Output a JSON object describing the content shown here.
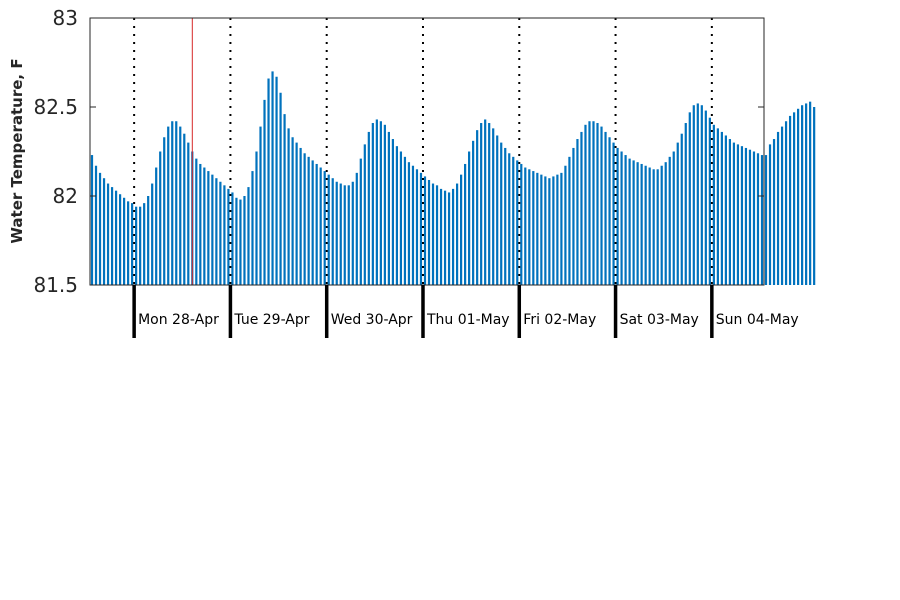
{
  "chart_data": {
    "type": "bar",
    "ylabel": "Water Temperature, F",
    "ylim": [
      81.5,
      83
    ],
    "yticks": [
      "81.5",
      "82",
      "82.5",
      "83"
    ],
    "bar_color": "#0072BD",
    "x_range_hours": [
      0,
      168
    ],
    "days": [
      {
        "label": "Mon 28-Apr",
        "start_hour": 11
      },
      {
        "label": "Tue 29-Apr",
        "start_hour": 35
      },
      {
        "label": "Wed 30-Apr",
        "start_hour": 59
      },
      {
        "label": "Thu 01-May",
        "start_hour": 83
      },
      {
        "label": "Fri 02-May",
        "start_hour": 107
      },
      {
        "label": "Sat 03-May",
        "start_hour": 131
      },
      {
        "label": "Sun 04-May",
        "start_hour": 155
      }
    ],
    "current_time_marker_hour": 25.5,
    "current_time_marker_color": "#d62728",
    "values": [
      82.23,
      82.17,
      82.13,
      82.1,
      82.07,
      82.05,
      82.03,
      82.01,
      81.99,
      81.97,
      81.96,
      81.94,
      81.94,
      81.96,
      82.0,
      82.07,
      82.16,
      82.25,
      82.33,
      82.39,
      82.42,
      82.42,
      82.39,
      82.35,
      82.3,
      82.25,
      82.21,
      82.18,
      82.16,
      82.14,
      82.12,
      82.1,
      82.08,
      82.06,
      82.04,
      82.02,
      81.99,
      81.98,
      82.0,
      82.05,
      82.14,
      82.25,
      82.39,
      82.54,
      82.66,
      82.7,
      82.67,
      82.58,
      82.46,
      82.38,
      82.33,
      82.3,
      82.27,
      82.24,
      82.22,
      82.2,
      82.18,
      82.16,
      82.14,
      82.12,
      82.1,
      82.08,
      82.07,
      82.06,
      82.06,
      82.08,
      82.13,
      82.21,
      82.29,
      82.36,
      82.41,
      82.43,
      82.42,
      82.4,
      82.36,
      82.32,
      82.28,
      82.25,
      82.22,
      82.19,
      82.17,
      82.15,
      82.13,
      82.11,
      82.09,
      82.07,
      82.06,
      82.04,
      82.03,
      82.02,
      82.04,
      82.07,
      82.12,
      82.18,
      82.25,
      82.31,
      82.37,
      82.41,
      82.43,
      82.41,
      82.38,
      82.34,
      82.3,
      82.27,
      82.24,
      82.22,
      82.2,
      82.18,
      82.16,
      82.15,
      82.14,
      82.13,
      82.12,
      82.11,
      82.1,
      82.11,
      82.12,
      82.13,
      82.17,
      82.22,
      82.27,
      82.32,
      82.36,
      82.4,
      82.42,
      82.42,
      82.41,
      82.39,
      82.36,
      82.33,
      82.3,
      82.27,
      82.25,
      82.23,
      82.21,
      82.2,
      82.19,
      82.18,
      82.17,
      82.16,
      82.15,
      82.15,
      82.17,
      82.19,
      82.22,
      82.25,
      82.3,
      82.35,
      82.41,
      82.47,
      82.51,
      82.52,
      82.51,
      82.48,
      82.44,
      82.4,
      82.38,
      82.36,
      82.34,
      82.32,
      82.3,
      82.29,
      82.28,
      82.27,
      82.26,
      82.25,
      82.24,
      82.23,
      82.23,
      82.29,
      82.32,
      82.36,
      82.39,
      82.42,
      82.45,
      82.47,
      82.49,
      82.51,
      82.52,
      82.53,
      82.5
    ]
  }
}
